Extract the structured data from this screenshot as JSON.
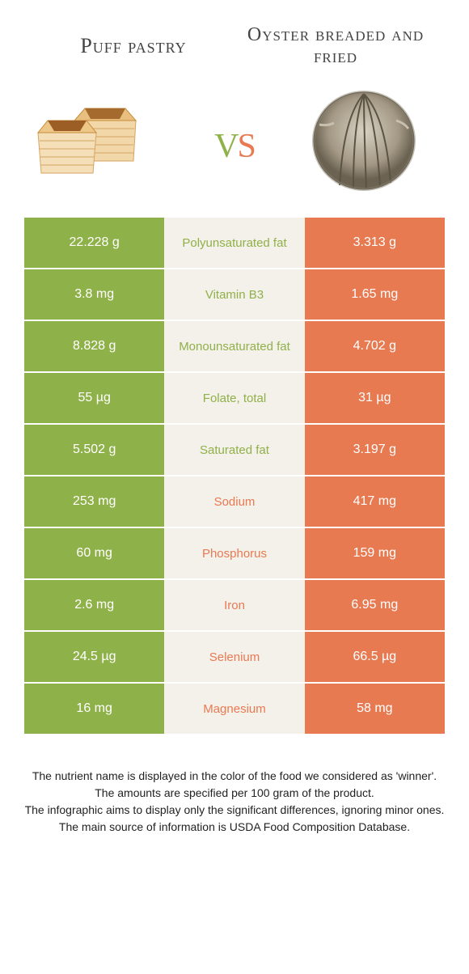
{
  "left_food": {
    "title": "Puff pastry",
    "color": "#8fb149"
  },
  "right_food": {
    "title": "Oyster breaded and fried",
    "color": "#e87a52"
  },
  "vs": {
    "v_color": "#8fb149",
    "s_color": "#e87a52"
  },
  "mid_bg": "#f4f0ea",
  "rows": [
    {
      "left": "22.228 g",
      "label": "Polyunsaturated fat",
      "right": "3.313 g",
      "winner": "left"
    },
    {
      "left": "3.8 mg",
      "label": "Vitamin B3",
      "right": "1.65 mg",
      "winner": "left"
    },
    {
      "left": "8.828 g",
      "label": "Monounsaturated fat",
      "right": "4.702 g",
      "winner": "left"
    },
    {
      "left": "55 µg",
      "label": "Folate, total",
      "right": "31 µg",
      "winner": "left"
    },
    {
      "left": "5.502 g",
      "label": "Saturated fat",
      "right": "3.197 g",
      "winner": "left"
    },
    {
      "left": "253 mg",
      "label": "Sodium",
      "right": "417 mg",
      "winner": "right"
    },
    {
      "left": "60 mg",
      "label": "Phosphorus",
      "right": "159 mg",
      "winner": "right"
    },
    {
      "left": "2.6 mg",
      "label": "Iron",
      "right": "6.95 mg",
      "winner": "right"
    },
    {
      "left": "24.5 µg",
      "label": "Selenium",
      "right": "66.5 µg",
      "winner": "right"
    },
    {
      "left": "16 mg",
      "label": "Magnesium",
      "right": "58 mg",
      "winner": "right"
    }
  ],
  "footer": {
    "line1": "The nutrient name is displayed in the color of the food we considered as 'winner'.",
    "line2": "The amounts are specified per 100 gram of the product.",
    "line3": "The infographic aims to display only the significant differences, ignoring minor ones.",
    "line4": "The main source of information is USDA Food Composition Database."
  }
}
